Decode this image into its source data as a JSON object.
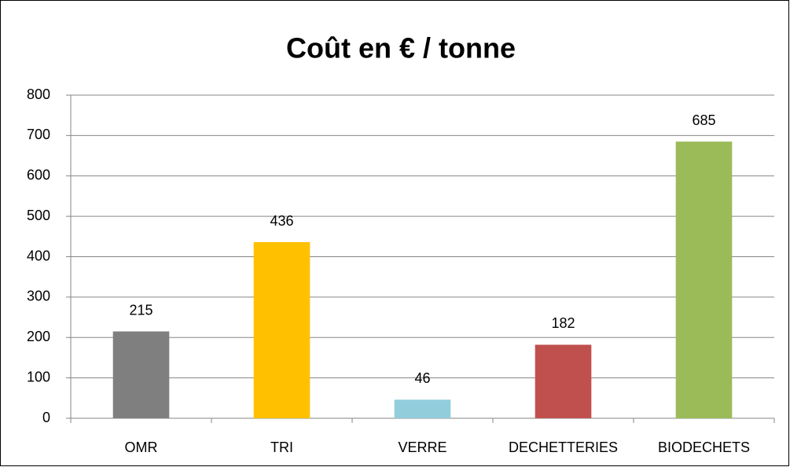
{
  "chart_data": {
    "type": "bar",
    "title": "Coût en € / tonne",
    "categories": [
      "OMR",
      "TRI",
      "VERRE",
      "DECHETTERIES",
      "BIODECHETS"
    ],
    "values": [
      215,
      436,
      46,
      182,
      685
    ],
    "colors": [
      "#7f7f7f",
      "#ffc000",
      "#92cddc",
      "#c0504d",
      "#9bbb59"
    ],
    "ylim": [
      0,
      800
    ],
    "yticks": [
      0,
      100,
      200,
      300,
      400,
      500,
      600,
      700,
      800
    ],
    "grid": true
  }
}
